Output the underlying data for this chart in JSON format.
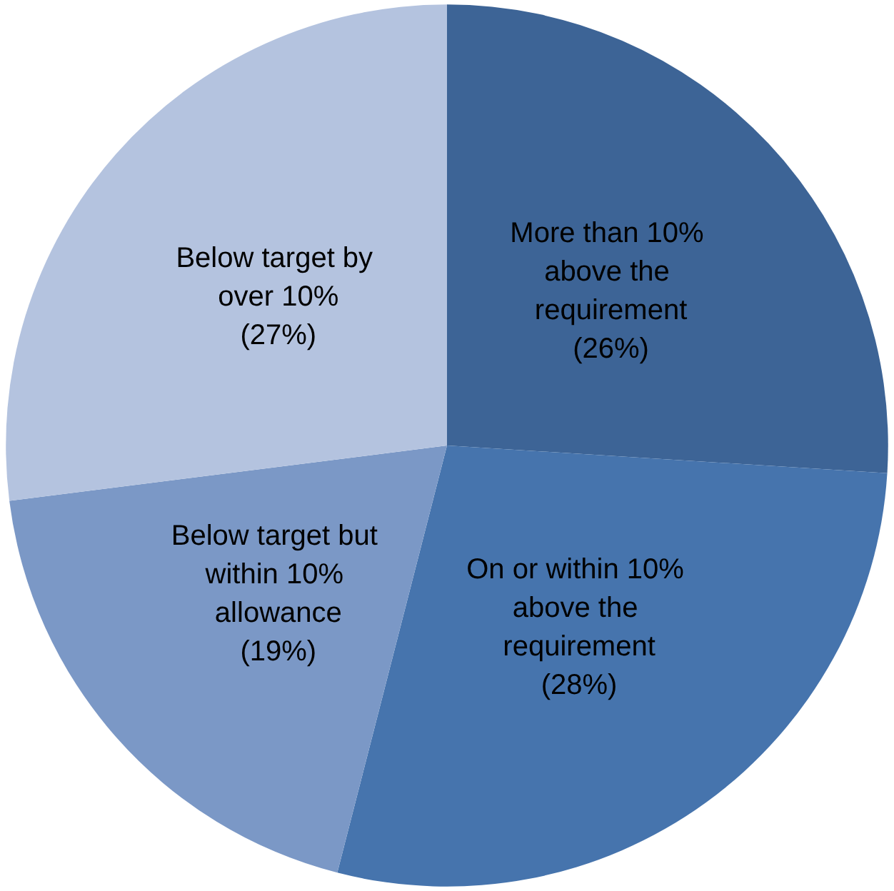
{
  "chart_data": {
    "type": "pie",
    "categories": [
      "More than 10% above the requirement",
      "On or within 10% above the requirement",
      "Below target but within 10% allowance",
      "Below target by over 10%"
    ],
    "values": [
      26,
      28,
      19,
      27
    ],
    "value_labels": [
      "(26%)",
      "(28%)",
      "(19%)",
      "(27%)"
    ],
    "colors": [
      "#3d6496",
      "#4674ad",
      "#7b98c6",
      "#b4c3df"
    ]
  }
}
